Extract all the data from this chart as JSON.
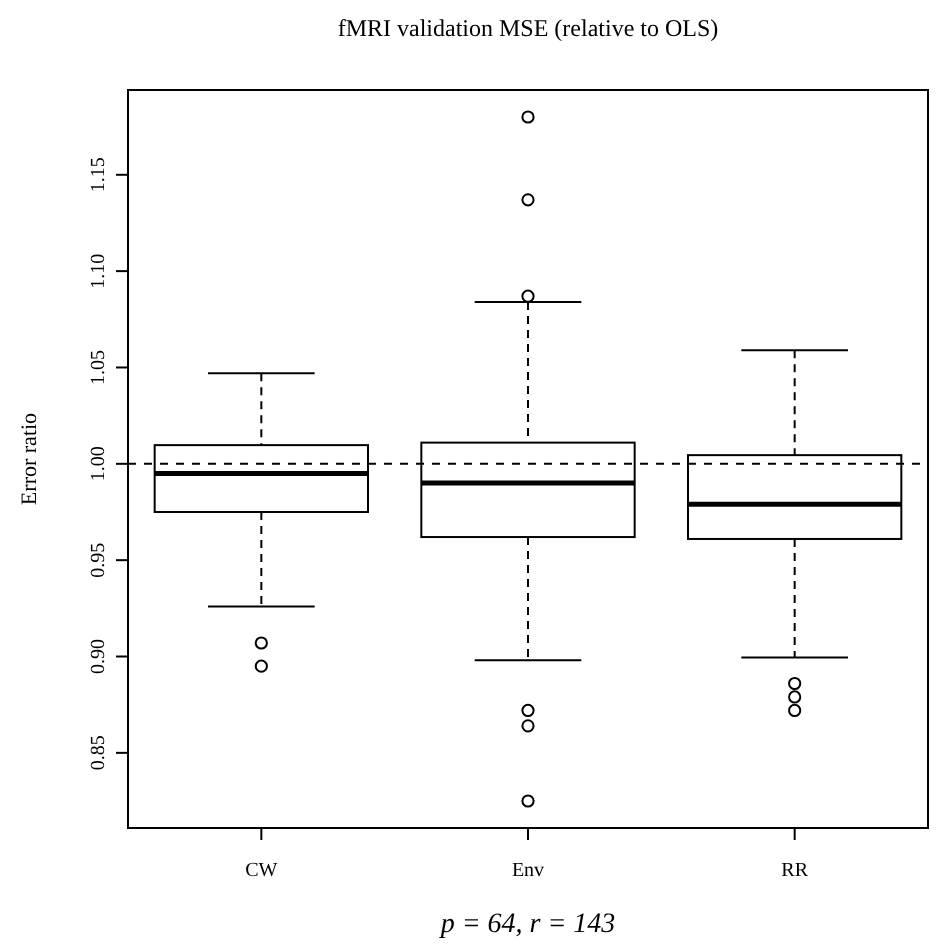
{
  "chart_data": {
    "type": "box",
    "title": "fMRI validation MSE (relative to OLS)",
    "xlabel": "p = 64, r = 143",
    "ylabel": "Error ratio",
    "categories": [
      "CW",
      "Env",
      "RR"
    ],
    "boxes": [
      {
        "low": 0.926,
        "q1": 0.975,
        "median": 0.995,
        "q3": 1.0097,
        "high": 1.047,
        "outliers": [
          0.907,
          0.895
        ]
      },
      {
        "low": 0.898,
        "q1": 0.962,
        "median": 0.99,
        "q3": 1.011,
        "high": 1.084,
        "outliers": [
          1.18,
          1.137,
          1.087,
          0.872,
          0.864,
          0.825
        ]
      },
      {
        "low": 0.8995,
        "q1": 0.961,
        "median": 0.979,
        "q3": 1.0045,
        "high": 1.059,
        "outliers": [
          0.886,
          0.879,
          0.872
        ]
      }
    ],
    "ylim": [
      0.811,
      1.194
    ],
    "yticks": [
      {
        "value": 0.85,
        "label": "0.85"
      },
      {
        "value": 0.9,
        "label": "0.90"
      },
      {
        "value": 0.95,
        "label": "0.95"
      },
      {
        "value": 1,
        "label": "1.00"
      },
      {
        "value": 1.05,
        "label": "1.05"
      },
      {
        "value": 1.1,
        "label": "1.10"
      },
      {
        "value": 1.15,
        "label": "1.15"
      }
    ],
    "ref_lines": [
      {
        "axis": "y",
        "value": 1,
        "line_style": "dashed",
        "color": "#000000"
      }
    ],
    "grid": false
  }
}
